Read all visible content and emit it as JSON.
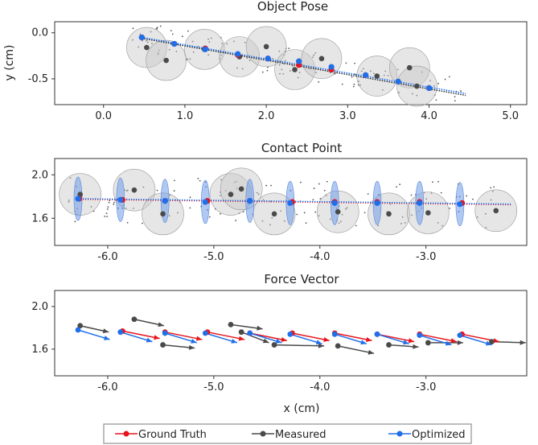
{
  "colors": {
    "ground_truth": "#e8141c",
    "measured": "#4a4a4a",
    "optimized": "#1f6fea",
    "noise": "#555555",
    "circle_fill": "#c8c8c8",
    "ellipse_fill": "#6f9de8"
  },
  "xlabel": "x (cm)",
  "ylabel": "y (cm)",
  "legend": {
    "placement": "bottom-center",
    "ground_truth": "Ground Truth",
    "measured": "Measured",
    "optimized": "Optimized"
  },
  "chart_data": [
    {
      "id": "pose",
      "type": "scatter",
      "title": "Object Pose",
      "xlim": [
        -0.6,
        5.2
      ],
      "ylim": [
        -0.78,
        0.12
      ],
      "xticks": [
        0.0,
        1.0,
        2.0,
        3.0,
        4.0,
        5.0
      ],
      "xtick_labels": [
        "0.0",
        "1.0",
        "2.0",
        "3.0",
        "4.0",
        "5.0"
      ],
      "yticks": [
        0.0,
        -0.5
      ],
      "ytick_labels": [
        "0.0",
        "-0.5"
      ],
      "ground_truth": [
        [
          0.47,
          -0.05
        ],
        [
          0.87,
          -0.12
        ],
        [
          1.25,
          -0.17
        ],
        [
          1.65,
          -0.24
        ],
        [
          2.02,
          -0.28
        ],
        [
          2.4,
          -0.35
        ],
        [
          2.8,
          -0.4
        ],
        [
          3.22,
          -0.46
        ],
        [
          3.62,
          -0.53
        ],
        [
          4.0,
          -0.6
        ]
      ],
      "optimized": [
        [
          0.47,
          -0.05
        ],
        [
          0.87,
          -0.12
        ],
        [
          1.25,
          -0.18
        ],
        [
          1.65,
          -0.23
        ],
        [
          2.02,
          -0.28
        ],
        [
          2.4,
          -0.31
        ],
        [
          2.8,
          -0.37
        ],
        [
          3.22,
          -0.46
        ],
        [
          3.62,
          -0.53
        ],
        [
          4.0,
          -0.6
        ]
      ],
      "measured": [
        [
          0.53,
          -0.16
        ],
        [
          0.77,
          -0.3
        ],
        [
          1.24,
          -0.18
        ],
        [
          1.67,
          -0.26
        ],
        [
          2.0,
          -0.15
        ],
        [
          2.35,
          -0.4
        ],
        [
          2.68,
          -0.28
        ],
        [
          3.36,
          -0.47
        ],
        [
          3.76,
          -0.38
        ],
        [
          3.85,
          -0.58
        ]
      ],
      "optimized_line": [
        [
          0.47,
          -0.05
        ],
        [
          4.45,
          -0.66
        ]
      ],
      "gt_line": [
        [
          0.47,
          -0.06
        ],
        [
          4.45,
          -0.68
        ]
      ]
    },
    {
      "id": "contact",
      "type": "scatter",
      "title": "Contact Point",
      "xlim": [
        -6.5,
        -2.05
      ],
      "ylim": [
        1.35,
        2.15
      ],
      "xticks": [
        -6.0,
        -5.0,
        -4.0,
        -3.0
      ],
      "xtick_labels": [
        "-6.0",
        "-5.0",
        "-4.0",
        "-3.0"
      ],
      "yticks": [
        2.0,
        1.6
      ],
      "ytick_labels": [
        "2.0",
        "1.6"
      ],
      "ground_truth": [
        [
          -6.27,
          1.78
        ],
        [
          -5.86,
          1.77
        ],
        [
          -5.46,
          1.76
        ],
        [
          -5.06,
          1.76
        ],
        [
          -4.66,
          1.76
        ],
        [
          -4.26,
          1.75
        ],
        [
          -3.86,
          1.75
        ],
        [
          -3.46,
          1.75
        ],
        [
          -3.06,
          1.75
        ],
        [
          -2.66,
          1.74
        ]
      ],
      "optimized": [
        [
          -6.28,
          1.78
        ],
        [
          -5.88,
          1.77
        ],
        [
          -5.46,
          1.76
        ],
        [
          -5.08,
          1.75
        ],
        [
          -4.66,
          1.76
        ],
        [
          -4.28,
          1.74
        ],
        [
          -3.86,
          1.74
        ],
        [
          -3.46,
          1.74
        ],
        [
          -3.06,
          1.74
        ],
        [
          -2.68,
          1.73
        ]
      ],
      "measured": [
        [
          -6.26,
          1.82
        ],
        [
          -5.75,
          1.86
        ],
        [
          -5.48,
          1.64
        ],
        [
          -4.84,
          1.82
        ],
        [
          -4.74,
          1.87
        ],
        [
          -4.43,
          1.64
        ],
        [
          -3.83,
          1.66
        ],
        [
          -3.35,
          1.64
        ],
        [
          -2.98,
          1.65
        ],
        [
          -2.34,
          1.67
        ]
      ],
      "optimized_line": [
        [
          -6.28,
          1.78
        ],
        [
          -2.2,
          1.73
        ]
      ]
    },
    {
      "id": "force",
      "type": "vector",
      "title": "Force Vector",
      "xlim": [
        -6.5,
        -2.05
      ],
      "ylim": [
        1.35,
        2.15
      ],
      "xticks": [
        -6.0,
        -5.0,
        -4.0,
        -3.0
      ],
      "xtick_labels": [
        "-6.0",
        "-5.0",
        "-4.0",
        "-3.0"
      ],
      "yticks": [
        2.0,
        1.6
      ],
      "ytick_labels": [
        "2.0",
        "1.6"
      ],
      "ground_truth": [
        [
          -5.86,
          1.77,
          0.35,
          -0.07
        ],
        [
          -5.46,
          1.76,
          0.35,
          -0.07
        ],
        [
          -5.06,
          1.76,
          0.35,
          -0.07
        ],
        [
          -4.66,
          1.75,
          0.35,
          -0.07
        ],
        [
          -4.26,
          1.75,
          0.35,
          -0.07
        ],
        [
          -3.86,
          1.75,
          0.35,
          -0.07
        ],
        [
          -3.46,
          1.74,
          0.35,
          -0.07
        ],
        [
          -3.06,
          1.74,
          0.35,
          -0.07
        ],
        [
          -2.66,
          1.74,
          0.35,
          -0.07
        ]
      ],
      "optimized": [
        [
          -6.28,
          1.78,
          0.3,
          -0.09
        ],
        [
          -5.88,
          1.76,
          0.3,
          -0.09
        ],
        [
          -5.46,
          1.75,
          0.3,
          -0.09
        ],
        [
          -5.08,
          1.75,
          0.3,
          -0.09
        ],
        [
          -4.66,
          1.75,
          0.3,
          -0.09
        ],
        [
          -4.28,
          1.74,
          0.3,
          -0.09
        ],
        [
          -3.86,
          1.74,
          0.3,
          -0.09
        ],
        [
          -3.46,
          1.74,
          0.3,
          -0.09
        ],
        [
          -3.06,
          1.73,
          0.3,
          -0.09
        ],
        [
          -2.68,
          1.73,
          0.3,
          -0.09
        ]
      ],
      "measured": [
        [
          -6.26,
          1.82,
          0.27,
          -0.06
        ],
        [
          -5.75,
          1.88,
          0.28,
          -0.06
        ],
        [
          -5.48,
          1.64,
          0.3,
          -0.03
        ],
        [
          -4.84,
          1.83,
          0.3,
          -0.04
        ],
        [
          -4.74,
          1.76,
          0.26,
          -0.1
        ],
        [
          -4.43,
          1.64,
          0.47,
          -0.01
        ],
        [
          -3.83,
          1.63,
          0.34,
          -0.07
        ],
        [
          -3.35,
          1.64,
          0.28,
          -0.02
        ],
        [
          -2.98,
          1.66,
          0.33,
          0.0
        ],
        [
          -2.38,
          1.67,
          0.32,
          -0.01
        ]
      ]
    }
  ]
}
